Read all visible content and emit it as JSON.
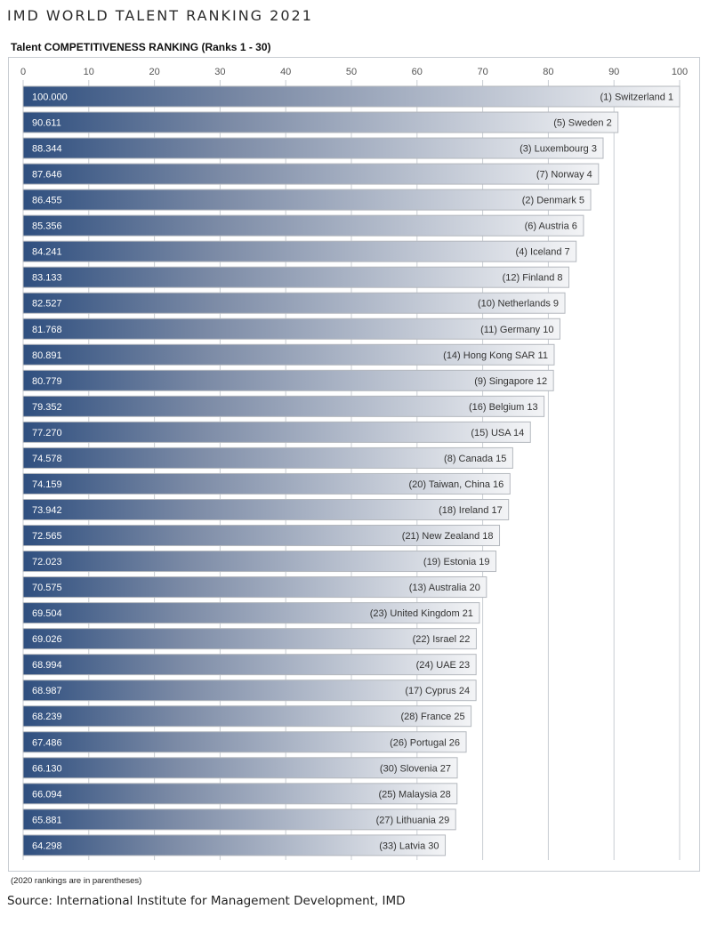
{
  "header": {
    "title": "IMD WORLD TALENT RANKING 2021"
  },
  "footer": {
    "note": "(2020 rankings are in parentheses)",
    "source": "Source: International Institute for Management Development, IMD"
  },
  "colors": {
    "bar_dark": "#2f4f7f",
    "bar_light": "#f3f4f6",
    "grid": "#c9cdd3",
    "bar_border": "#b4b8be"
  },
  "chart_data": {
    "type": "bar",
    "orientation": "horizontal",
    "title": "Talent COMPETITIVENESS RANKING (Ranks 1 - 30)",
    "xlim": [
      0,
      100
    ],
    "xticks": [
      0,
      10,
      20,
      30,
      40,
      50,
      60,
      70,
      80,
      90,
      100
    ],
    "grid": true,
    "value_labels": [
      "100.000",
      "90.611",
      "88.344",
      "87.646",
      "86.455",
      "85.356",
      "84.241",
      "83.133",
      "82.527",
      "81.768",
      "80.891",
      "80.779",
      "79.352",
      "77.270",
      "74.578",
      "74.159",
      "73.942",
      "72.565",
      "72.023",
      "70.575",
      "69.504",
      "69.026",
      "68.994",
      "68.987",
      "68.239",
      "67.486",
      "66.130",
      "66.094",
      "65.881",
      "64.298"
    ],
    "categories": [
      "(1) Switzerland 1",
      "(5) Sweden 2",
      "(3) Luxembourg 3",
      "(7) Norway 4",
      "(2) Denmark 5",
      "(6) Austria 6",
      "(4) Iceland 7",
      "(12) Finland 8",
      "(10) Netherlands 9",
      "(11) Germany 10",
      "(14) Hong Kong SAR 11",
      "(9) Singapore 12",
      "(16) Belgium 13",
      "(15) USA 14",
      "(8) Canada 15",
      "(20) Taiwan, China 16",
      "(18) Ireland 17",
      "(21) New Zealand 18",
      "(19) Estonia 19",
      "(13) Australia 20",
      "(23) United Kingdom 21",
      "(22) Israel 22",
      "(24) UAE 23",
      "(17) Cyprus 24",
      "(28) France 25",
      "(26) Portugal 26",
      "(30) Slovenia 27",
      "(25) Malaysia 28",
      "(27) Lithuania 29",
      "(33) Latvia 30"
    ],
    "values": [
      100.0,
      90.611,
      88.344,
      87.646,
      86.455,
      85.356,
      84.241,
      83.133,
      82.527,
      81.768,
      80.891,
      80.779,
      79.352,
      77.27,
      74.578,
      74.159,
      73.942,
      72.565,
      72.023,
      70.575,
      69.504,
      69.026,
      68.994,
      68.987,
      68.239,
      67.486,
      66.13,
      66.094,
      65.881,
      64.298
    ]
  }
}
